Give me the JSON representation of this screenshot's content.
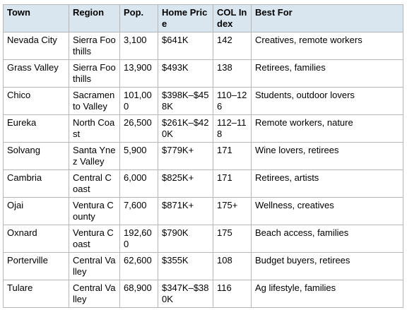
{
  "table": {
    "headers": [
      "Town",
      "Region",
      "Pop.",
      "Home Price",
      "COL Index",
      "Best For"
    ],
    "rows": [
      [
        "Nevada City",
        "Sierra Foothills",
        "3,100",
        "$641K",
        "142",
        "Creatives, remote workers"
      ],
      [
        "Grass Valley",
        "Sierra Foothills",
        "13,900",
        "$493K",
        "138",
        "Retirees, families"
      ],
      [
        "Chico",
        "Sacramento Valley",
        "101,000",
        "$398K–$458K",
        "110–126",
        "Students, outdoor lovers"
      ],
      [
        "Eureka",
        "North Coast",
        "26,500",
        "$261K–$420K",
        "112–118",
        "Remote workers, nature"
      ],
      [
        "Solvang",
        "Santa Ynez Valley",
        "5,900",
        "$779K+",
        "171",
        "Wine lovers, retirees"
      ],
      [
        "Cambria",
        "Central Coast",
        "6,000",
        "$825K+",
        "171",
        "Retirees, artists"
      ],
      [
        "Ojai",
        "Ventura County",
        "7,600",
        "$871K+",
        "175+",
        "Wellness, creatives"
      ],
      [
        "Oxnard",
        "Ventura Coast",
        "192,600",
        "$790K",
        "175",
        "Beach access, families"
      ],
      [
        "Porterville",
        "Central Valley",
        "62,600",
        "$355K",
        "108",
        "Budget buyers, retirees"
      ],
      [
        "Tulare",
        "Central Valley",
        "68,900",
        "$347K–$380K",
        "116",
        "Ag lifestyle, families"
      ]
    ]
  }
}
